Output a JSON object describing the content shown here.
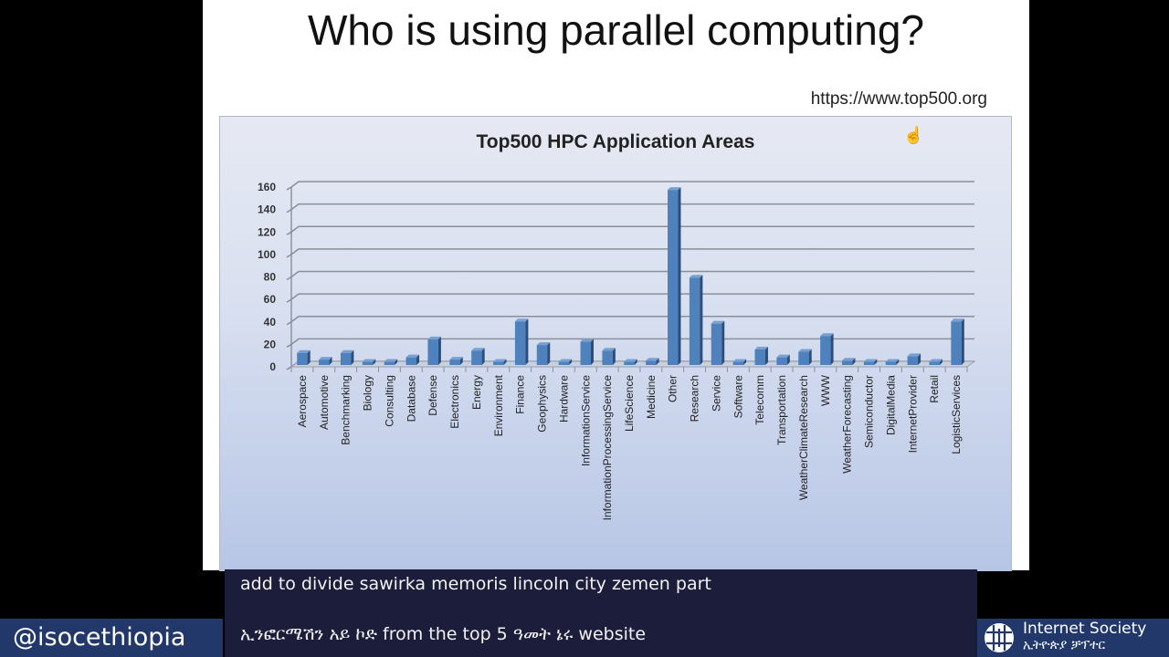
{
  "slide": {
    "title": "Who is using parallel computing?",
    "source_url": "https://www.top500.org"
  },
  "chart_data": {
    "type": "bar",
    "title": "Top500 HPC Application Areas",
    "xlabel": "",
    "ylabel": "",
    "ylim": [
      0,
      160
    ],
    "yticks": [
      0,
      20,
      40,
      60,
      80,
      100,
      120,
      140,
      160
    ],
    "grid": true,
    "legend": null,
    "categories": [
      "Aerospace",
      "Automotive",
      "Benchmarking",
      "Biology",
      "Consulting",
      "Database",
      "Defense",
      "Electronics",
      "Energy",
      "Environment",
      "Finance",
      "Geophysics",
      "Hardware",
      "InformationService",
      "InformationProcessingService",
      "LifeScience",
      "Medicine",
      "Other",
      "Research",
      "Service",
      "Software",
      "Telecomm",
      "Transportation",
      "WeatherClimateResearch",
      "WWW",
      "WeatherForecasting",
      "Semiconductor",
      "DigitalMedia",
      "InternetProvider",
      "Retail",
      "LogisticServices"
    ],
    "values": [
      10,
      4,
      10,
      2,
      2,
      6,
      22,
      4,
      12,
      2,
      38,
      17,
      2,
      20,
      12,
      2,
      3,
      155,
      77,
      36,
      2,
      13,
      6,
      11,
      25,
      3,
      2,
      2,
      7,
      2,
      38
    ],
    "bar_color": "#4f81bd"
  },
  "cursor": {
    "icon": "hand-cursor-icon",
    "glyph": "☝"
  },
  "captions": {
    "line1": "add to divide sawirka memoris lincoln city zemen part",
    "line2": "ኢንፎርሜሽን አይ ኮድ from the top 5 ዓመት ኔሩ website"
  },
  "branding": {
    "handle": "@isocethiopia",
    "org_name": "Internet Society",
    "org_sub": "ኢትዮጵያ ቻፕተር",
    "brand_color": "#22386b"
  }
}
